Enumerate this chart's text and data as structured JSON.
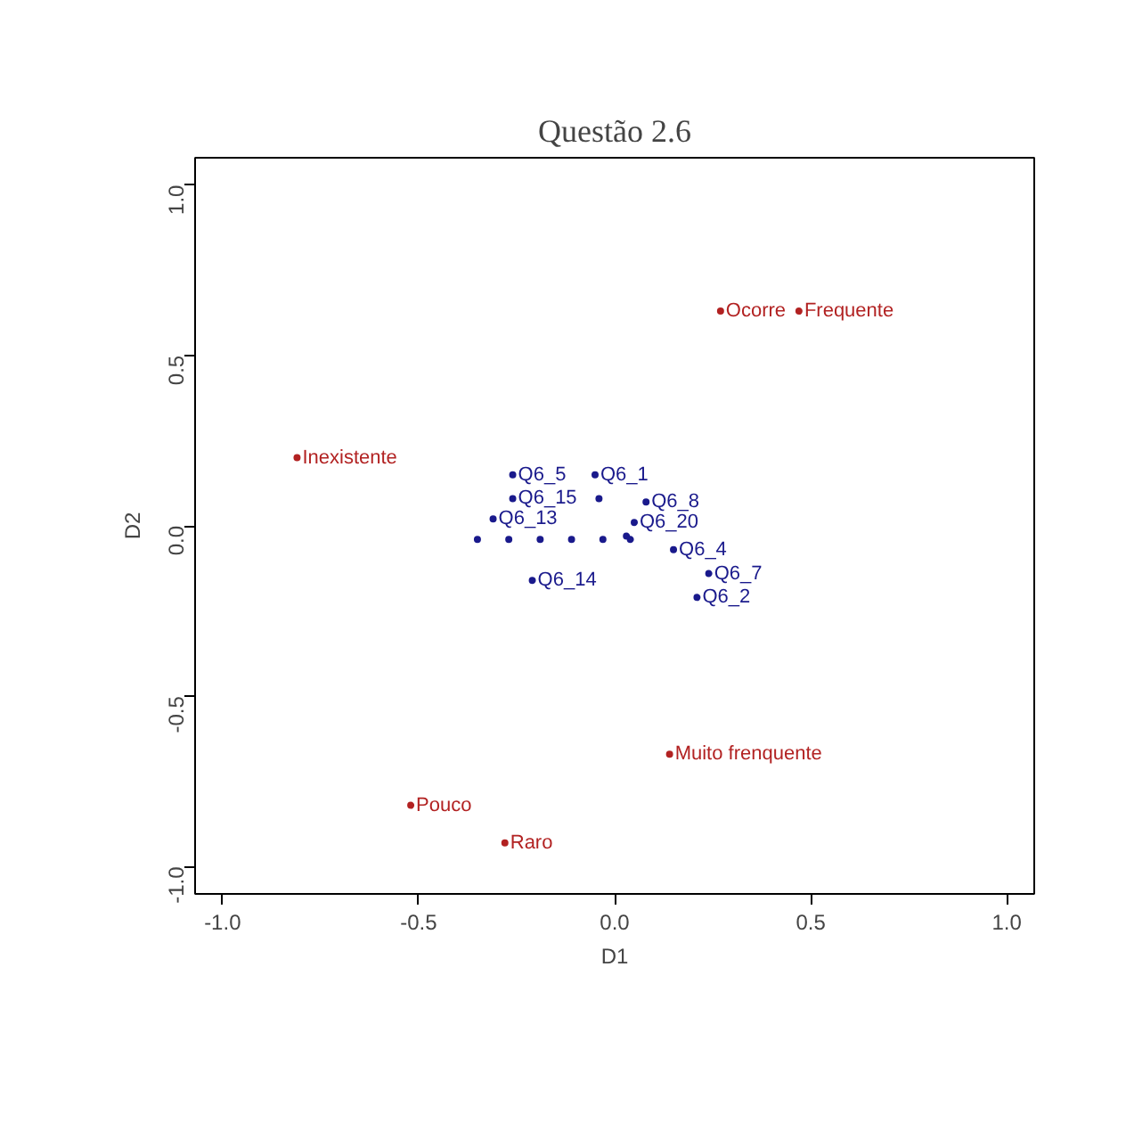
{
  "chart_data": {
    "type": "scatter",
    "title": "Questão 2.6",
    "xlabel": "D1",
    "ylabel": "D2",
    "xlim": [
      -1.07,
      1.07
    ],
    "ylim": [
      -1.08,
      1.08
    ],
    "xticks": [
      {
        "value": -1,
        "label": "-1.0"
      },
      {
        "value": -0.5,
        "label": "-0.5"
      },
      {
        "value": 0,
        "label": "0.0"
      },
      {
        "value": 0.5,
        "label": "0.5"
      },
      {
        "value": 1,
        "label": "1.0"
      }
    ],
    "yticks": [
      {
        "value": -1,
        "label": "-1.0"
      },
      {
        "value": -0.5,
        "label": "-0.5"
      },
      {
        "value": 0,
        "label": "0.0"
      },
      {
        "value": 0.5,
        "label": "0.5"
      },
      {
        "value": 1,
        "label": "1.0"
      }
    ],
    "grid": false,
    "marker": "circle",
    "series": [
      {
        "color": "#b22222",
        "x": [
          0.27,
          0.47,
          -0.81,
          0.14,
          -0.52,
          -0.28
        ],
        "values": [
          0.63,
          0.63,
          0.2,
          -0.67,
          -0.82,
          -0.93
        ],
        "value_labels": [
          "Ocorre",
          "Frequente",
          "Inexistente",
          "Muito frenquente",
          "Pouco",
          "Raro"
        ]
      },
      {
        "color": "#1a1a8c",
        "x": [
          -0.26,
          -0.05,
          -0.26,
          -0.04,
          0.08,
          -0.31,
          0.05,
          -0.35,
          -0.27,
          -0.19,
          -0.11,
          -0.03,
          0.04,
          0.03,
          0.15,
          0.24,
          0.21,
          -0.21
        ],
        "values": [
          0.15,
          0.15,
          0.08,
          0.08,
          0.07,
          0.02,
          0.01,
          -0.04,
          -0.04,
          -0.04,
          -0.04,
          -0.04,
          -0.04,
          -0.03,
          -0.07,
          -0.14,
          -0.21,
          -0.16
        ],
        "value_labels": [
          "Q6_5",
          "Q6_1",
          "Q6_15",
          null,
          "Q6_8",
          "Q6_13",
          "Q6_20",
          null,
          null,
          null,
          null,
          null,
          null,
          null,
          "Q6_4",
          "Q6_7",
          "Q6_2",
          "Q6_14"
        ]
      }
    ]
  }
}
